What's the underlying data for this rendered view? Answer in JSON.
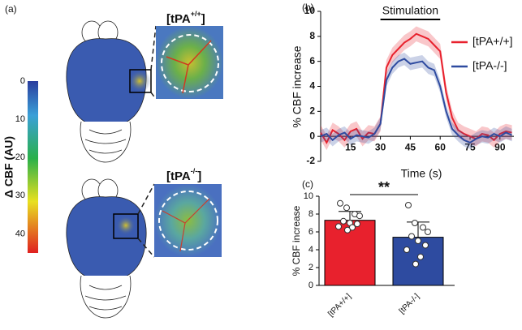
{
  "panel_a": {
    "label": "(a)",
    "wt_title": {
      "text": "[tPA",
      "sup": "+/+",
      "end": "]"
    },
    "ko_title": {
      "text": "[tPA",
      "sup": "-/-",
      "end": "]"
    },
    "colorbar": {
      "label": "Δ CBF (AU)",
      "lim": [
        0,
        45
      ],
      "ticks": [
        0,
        10,
        20,
        30,
        40
      ]
    }
  },
  "chart_data": [
    {
      "type": "line",
      "panel": "(b)",
      "annotation": "Stimulation",
      "stim": [
        30,
        60
      ],
      "xlabel": "Time (s)",
      "ylabel": "% CBF increase",
      "x": [
        0,
        3,
        6,
        9,
        12,
        15,
        18,
        21,
        24,
        27,
        30,
        33,
        36,
        39,
        42,
        45,
        48,
        51,
        54,
        57,
        60,
        63,
        66,
        69,
        72,
        75,
        78,
        81,
        84,
        87,
        90,
        93,
        96
      ],
      "series": [
        {
          "name": "[tPA+/+]",
          "color": "#e8212d",
          "error": 0.6,
          "values": [
            0.3,
            -0.5,
            0.5,
            0.2,
            -0.3,
            0.4,
            0.6,
            -0.2,
            0.3,
            0.2,
            1.0,
            5.5,
            6.5,
            7.0,
            7.5,
            7.8,
            8.2,
            8.0,
            7.8,
            7.3,
            6.8,
            3.5,
            1.5,
            0.5,
            0.2,
            0,
            -0.2,
            0.2,
            0.1,
            -0.3,
            0.2,
            0.4,
            0.3
          ]
        },
        {
          "name": "[tPA-/-]",
          "color": "#2e4ba0",
          "error": 0.5,
          "values": [
            0,
            0.2,
            -0.3,
            0.1,
            0.3,
            -0.2,
            0.1,
            0,
            -0.1,
            0.2,
            1.0,
            4.5,
            5.5,
            6.0,
            6.2,
            5.8,
            5.9,
            6.0,
            5.5,
            5.3,
            4.0,
            2.0,
            0.6,
            0.1,
            -0.3,
            -0.5,
            -0.2,
            0,
            -0.1,
            0.2,
            0,
            0.3,
            0.1
          ]
        }
      ],
      "xlim": [
        0,
        97
      ],
      "xticks": [
        15,
        30,
        45,
        60,
        75,
        90
      ],
      "ylim": [
        -2,
        10
      ],
      "yticks": [
        -2,
        0,
        2,
        4,
        6,
        8,
        10
      ]
    },
    {
      "type": "bar",
      "panel": "(c)",
      "ylabel": "% CBF increase",
      "significance": "**",
      "categories": [
        "[tPA+/+]",
        "[tPA-/-]"
      ],
      "values": [
        7.3,
        5.4
      ],
      "errors": [
        1.0,
        1.7
      ],
      "colors": [
        "#e8212d",
        "#2e4ba0"
      ],
      "points": [
        [
          9.2,
          8.7,
          8.0,
          7.8,
          7.2,
          7.0,
          6.9,
          6.6,
          6.5,
          6.2
        ],
        [
          9.0,
          7.0,
          6.5,
          6.0,
          5.5,
          5.0,
          4.5,
          4.0,
          3.2,
          2.4
        ]
      ],
      "ylim": [
        0,
        10
      ],
      "yticks": [
        0,
        2,
        4,
        6,
        8,
        10
      ]
    }
  ]
}
